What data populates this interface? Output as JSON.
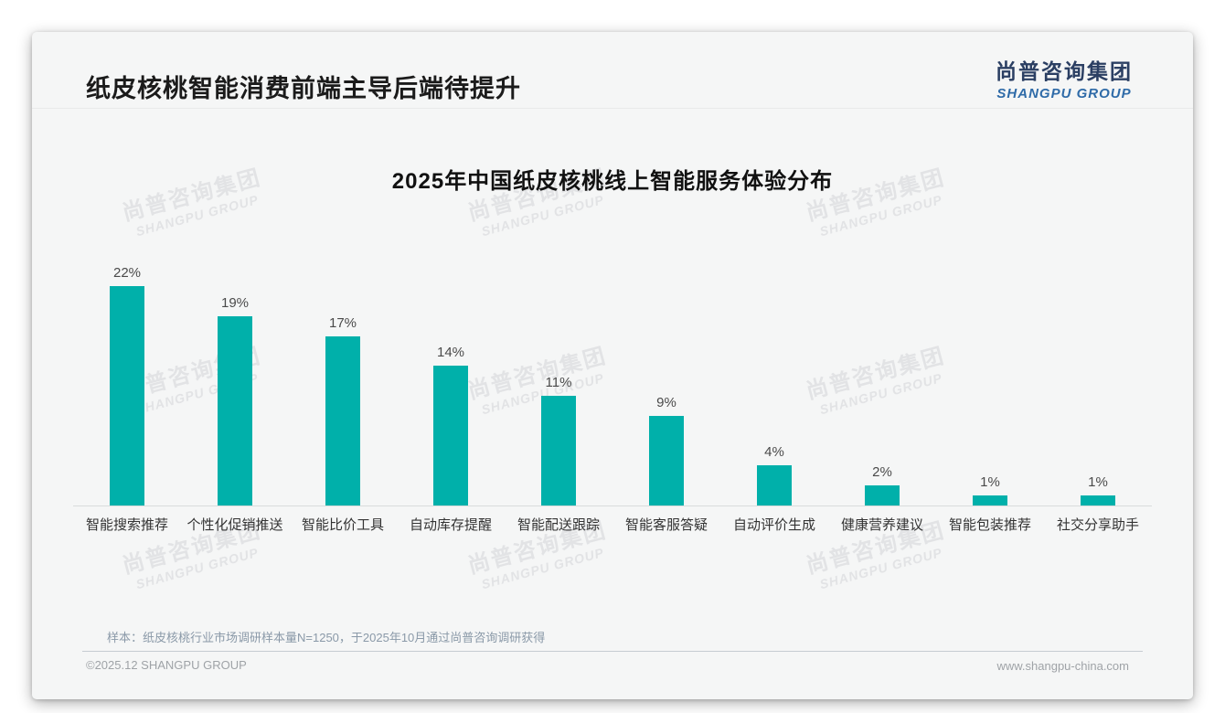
{
  "page": {
    "title": "纸皮核桃智能消费前端主导后端待提升",
    "sample_note": "样本：纸皮核桃行业市场调研样本量N=1250，于2025年10月通过尚普咨询调研获得",
    "footer_left": "©2025.12 SHANGPU GROUP",
    "footer_right": "www.shangpu-china.com"
  },
  "logo": {
    "cn": "尚普咨询集团",
    "en": "SHANGPU GROUP"
  },
  "watermark": {
    "line1": "尚普咨询集团",
    "line2": "SHANGPU GROUP"
  },
  "colors": {
    "bar": "#00b0aa",
    "logo_cn": "#2b3f63",
    "logo_en": "#2f6ba8",
    "value_label": "#4a4a4a",
    "note_text": "#8a99a8"
  },
  "chart_data": {
    "type": "bar",
    "title": "2025年中国纸皮核桃线上智能服务体验分布",
    "categories": [
      "智能搜索推荐",
      "个性化促销推送",
      "智能比价工具",
      "自动库存提醒",
      "智能配送跟踪",
      "智能客服答疑",
      "自动评价生成",
      "健康营养建议",
      "智能包装推荐",
      "社交分享助手"
    ],
    "values": [
      22,
      19,
      17,
      14,
      11,
      9,
      4,
      2,
      1,
      1
    ],
    "value_labels": [
      "22%",
      "19%",
      "17%",
      "14%",
      "11%",
      "9%",
      "4%",
      "2%",
      "1%",
      "1%"
    ],
    "unit": "%",
    "bar_color": "#00b0aa",
    "xlabel": "",
    "ylabel": "",
    "ylim": [
      0,
      24
    ],
    "grid": false,
    "legend": false,
    "y_axis_visible": false
  }
}
